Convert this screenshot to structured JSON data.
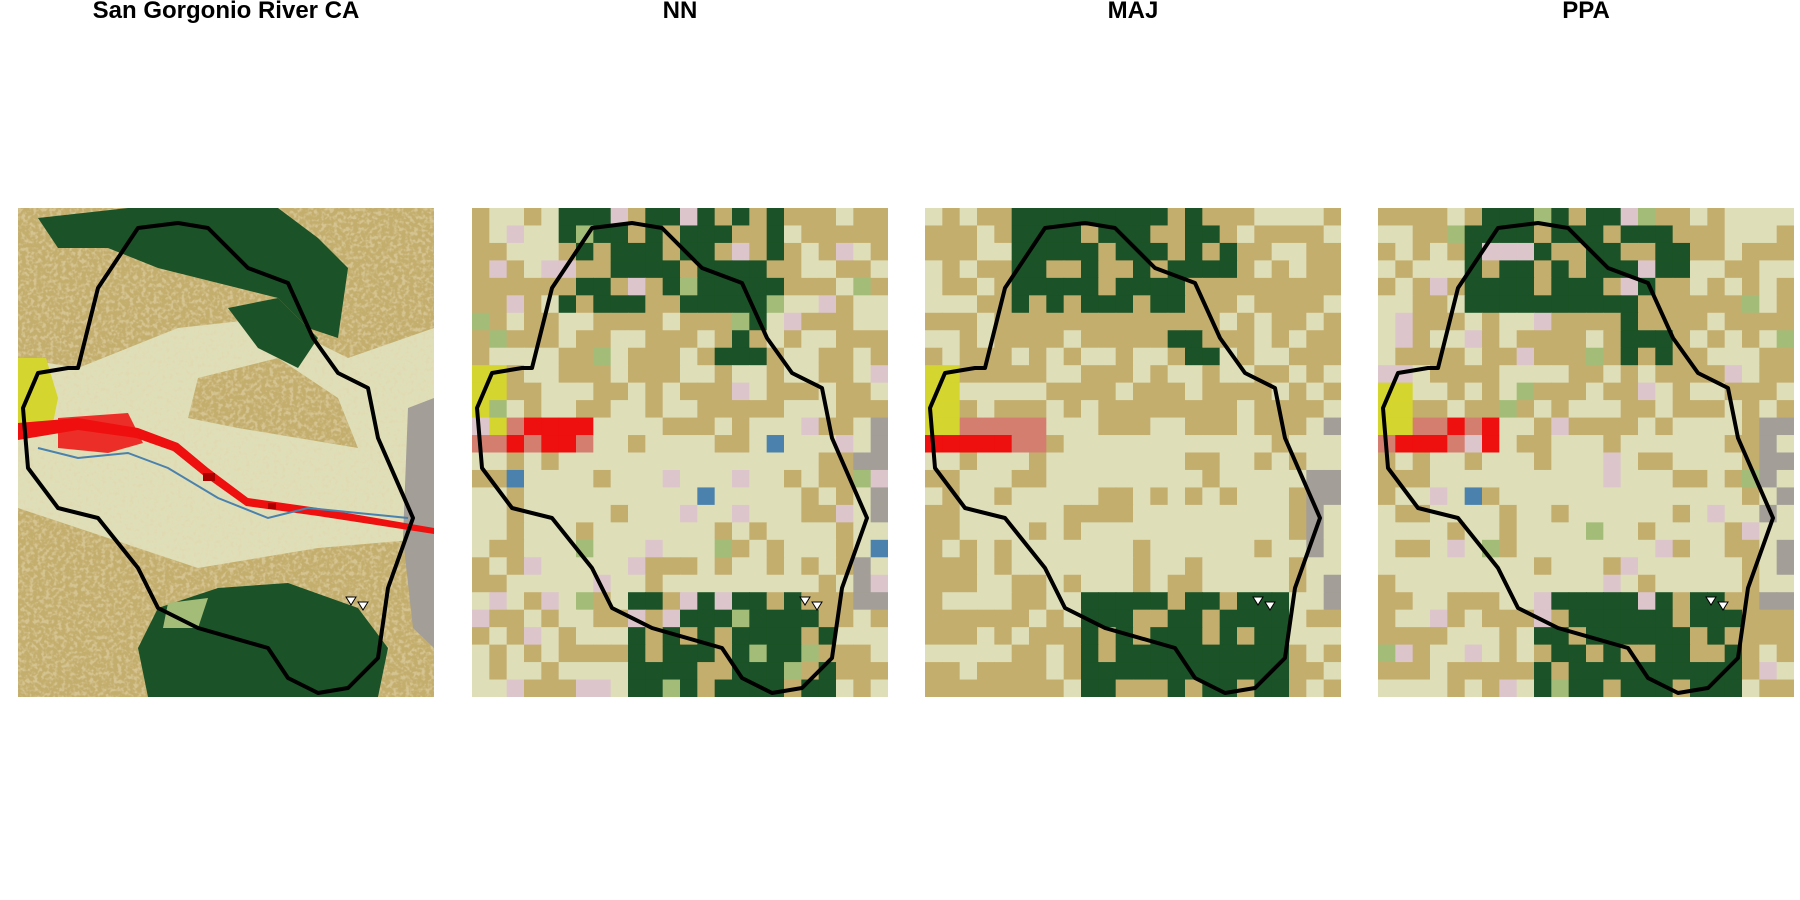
{
  "panels": [
    {
      "id": "original",
      "title": "San Gorgonio River CA"
    },
    {
      "id": "nn",
      "title": "NN"
    },
    {
      "id": "maj",
      "title": "MAJ"
    },
    {
      "id": "ppa",
      "title": "PPA"
    }
  ],
  "colors": {
    "evergreen_forest": "#1b5227",
    "shrub_scrub": "#c4ae6e",
    "barren_land": "#dedfb8",
    "developed_low": "#d47e6f",
    "developed_medium": "#ee0f0f",
    "developed_high": "#aa0000",
    "developed_open": "#dcc5cb",
    "grassland": "#a3bc78",
    "cultivated_crops": "#d5d52f",
    "deciduous_forest": "#6a9f4f",
    "rock_gray": "#a39e97",
    "water": "#4a81ad",
    "wetlands": "#a8cce6",
    "watershed_outline": "#000000",
    "gauge_marker": "#ffffff"
  }
}
